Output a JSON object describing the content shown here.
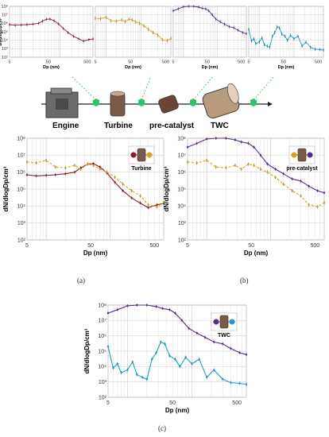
{
  "figure": {
    "captions": {
      "a": "(a)",
      "b": "(b)",
      "c": "(c)"
    },
    "schematic": {
      "labels": {
        "engine": "Engine",
        "turbine": "Turbine",
        "precat": "pre-catalyst",
        "twc": "TWC"
      }
    }
  },
  "chart_data": [
    {
      "id": "top-1",
      "type": "line",
      "title": "",
      "xlabel": "Dp (nm)",
      "ylabel": "dN/dlogDp/cm³",
      "xscale": "log",
      "yscale": "log",
      "xlim": [
        5,
        700
      ],
      "ylim": [
        100,
        100000000
      ],
      "xticks": [
        "5",
        "50",
        "500"
      ],
      "yticks": [
        "10²",
        "10³",
        "10⁴",
        "10⁵",
        "10⁶",
        "10⁷",
        "10⁸"
      ],
      "series": [
        {
          "color": "#8b1c2c",
          "x": [
            5,
            7,
            10,
            14,
            20,
            28,
            35,
            45,
            55,
            70,
            90,
            120,
            160,
            220,
            300,
            400,
            550,
            700
          ],
          "y": [
            700000,
            600000,
            650000,
            700000,
            800000,
            1000000,
            1800000,
            3000000,
            3200000,
            2000000,
            900000,
            250000,
            80000,
            30000,
            15000,
            8000,
            12000,
            14000
          ]
        }
      ]
    },
    {
      "id": "top-2",
      "type": "line",
      "title": "",
      "xlabel": "Dp (nm)",
      "ylabel": "",
      "xscale": "log",
      "yscale": "log",
      "xlim": [
        5,
        700
      ],
      "ylim": [
        100,
        100000000
      ],
      "xticks": [
        "5",
        "50",
        "500"
      ],
      "yticks": [],
      "series": [
        {
          "color": "#d9a21c",
          "x": [
            5,
            7,
            10,
            14,
            20,
            28,
            35,
            45,
            55,
            70,
            90,
            120,
            160,
            220,
            300,
            400,
            550,
            700
          ],
          "y": [
            4000000,
            3500000,
            5000000,
            2000000,
            1800000,
            2500000,
            1500000,
            3000000,
            2500000,
            1500000,
            1000000,
            500000,
            200000,
            80000,
            40000,
            12000,
            9000,
            16000
          ]
        }
      ]
    },
    {
      "id": "top-3",
      "type": "line",
      "title": "",
      "xlabel": "Dp (nm)",
      "ylabel": "",
      "xscale": "log",
      "yscale": "log",
      "xlim": [
        5,
        700
      ],
      "ylim": [
        100,
        100000000
      ],
      "xticks": [
        "5",
        "50",
        "500"
      ],
      "yticks": [],
      "series": [
        {
          "color": "#5b2c8a",
          "x": [
            5,
            7,
            10,
            14,
            20,
            28,
            35,
            45,
            55,
            70,
            90,
            120,
            160,
            220,
            300,
            400,
            550,
            700
          ],
          "y": [
            30000000,
            50000000,
            90000000,
            120000000,
            110000000,
            80000000,
            60000000,
            50000000,
            30000000,
            10000000,
            3000000,
            1500000,
            800000,
            400000,
            300000,
            150000,
            80000,
            60000
          ]
        }
      ]
    },
    {
      "id": "top-4",
      "type": "line",
      "title": "",
      "xlabel": "Dp (nm)",
      "ylabel": "",
      "xscale": "log",
      "yscale": "log",
      "xlim": [
        5,
        700
      ],
      "ylim": [
        100,
        100000000
      ],
      "xticks": [
        "5",
        "50",
        "500"
      ],
      "yticks": [],
      "series": [
        {
          "color": "#1aa0c4",
          "x": [
            5,
            6,
            7,
            8,
            10,
            12,
            14,
            17,
            20,
            24,
            28,
            33,
            38,
            45,
            55,
            65,
            80,
            100,
            130,
            170,
            220,
            300,
            400,
            550,
            700
          ],
          "y": [
            200000,
            8000,
            15000,
            4000,
            6000,
            20000,
            3000,
            2000,
            1500,
            30000,
            80000,
            400000,
            300000,
            50000,
            30000,
            10000,
            40000,
            15000,
            30000,
            2000,
            6000,
            1500,
            900,
            800,
            700
          ]
        }
      ]
    },
    {
      "id": "a",
      "type": "line",
      "title": "",
      "xlabel": "Dp (nm)",
      "ylabel": "dN/dlogDp/cm³",
      "xscale": "log",
      "yscale": "log",
      "xlim": [
        5,
        700
      ],
      "ylim": [
        100,
        100000000
      ],
      "xticks": [
        "5",
        "50",
        "500"
      ],
      "yticks": [
        "10²",
        "10³",
        "10⁴",
        "10⁵",
        "10⁶",
        "10⁷",
        "10⁸"
      ],
      "inset_label": "Turbine",
      "series": [
        {
          "color": "#8b1c2c",
          "dashed": false,
          "x": [
            5,
            7,
            10,
            14,
            20,
            28,
            35,
            45,
            55,
            70,
            90,
            120,
            160,
            220,
            300,
            400,
            550,
            700
          ],
          "y": [
            700000,
            600000,
            650000,
            700000,
            800000,
            1000000,
            1800000,
            3000000,
            3200000,
            2000000,
            900000,
            250000,
            80000,
            30000,
            15000,
            8000,
            12000,
            14000
          ]
        },
        {
          "color": "#d9a21c",
          "dashed": true,
          "x": [
            5,
            7,
            10,
            14,
            20,
            28,
            35,
            45,
            55,
            70,
            90,
            120,
            160,
            220,
            300,
            400,
            550,
            700
          ],
          "y": [
            4000000,
            3500000,
            5000000,
            2000000,
            1800000,
            2500000,
            1500000,
            3000000,
            2500000,
            1500000,
            1000000,
            500000,
            200000,
            80000,
            40000,
            12000,
            9000,
            16000
          ]
        }
      ]
    },
    {
      "id": "b",
      "type": "line",
      "title": "",
      "xlabel": "Dp (nm)",
      "ylabel": "dN/dlogDp/cm³",
      "xscale": "log",
      "yscale": "log",
      "xlim": [
        5,
        700
      ],
      "ylim": [
        100,
        100000000
      ],
      "xticks": [
        "5",
        "50",
        "500"
      ],
      "yticks": [
        "10²",
        "10³",
        "10⁴",
        "10⁵",
        "10⁶",
        "10⁷",
        "10⁸"
      ],
      "inset_label": "pre-catalyst",
      "series": [
        {
          "color": "#d9a21c",
          "dashed": true,
          "x": [
            5,
            7,
            10,
            14,
            20,
            28,
            35,
            45,
            55,
            70,
            90,
            120,
            160,
            220,
            300,
            400,
            550,
            700
          ],
          "y": [
            4000000,
            3500000,
            5000000,
            2000000,
            1800000,
            2500000,
            1500000,
            3000000,
            2500000,
            1500000,
            1000000,
            500000,
            200000,
            80000,
            40000,
            12000,
            9000,
            16000
          ]
        },
        {
          "color": "#5b2c8a",
          "dashed": false,
          "x": [
            5,
            7,
            10,
            14,
            20,
            28,
            35,
            45,
            55,
            70,
            90,
            120,
            160,
            220,
            300,
            400,
            550,
            700
          ],
          "y": [
            30000000,
            50000000,
            90000000,
            120000000,
            110000000,
            80000000,
            60000000,
            50000000,
            30000000,
            10000000,
            3000000,
            1500000,
            800000,
            400000,
            300000,
            150000,
            80000,
            60000
          ]
        }
      ]
    },
    {
      "id": "c",
      "type": "line",
      "title": "",
      "xlabel": "Dp (nm)",
      "ylabel": "dN/dlogDp/cm³",
      "xscale": "log",
      "yscale": "log",
      "xlim": [
        5,
        700
      ],
      "ylim": [
        100,
        100000000
      ],
      "xticks": [
        "5",
        "50",
        "500"
      ],
      "yticks": [
        "10²",
        "10³",
        "10⁴",
        "10⁵",
        "10⁶",
        "10⁷",
        "10⁸"
      ],
      "inset_label": "TWC",
      "series": [
        {
          "color": "#5b2c8a",
          "dashed": false,
          "x": [
            5,
            7,
            10,
            14,
            20,
            28,
            35,
            45,
            55,
            70,
            90,
            120,
            160,
            220,
            300,
            400,
            550,
            700
          ],
          "y": [
            30000000,
            50000000,
            90000000,
            120000000,
            110000000,
            80000000,
            60000000,
            50000000,
            30000000,
            10000000,
            3000000,
            1500000,
            800000,
            400000,
            300000,
            150000,
            80000,
            60000
          ]
        },
        {
          "color": "#1aa0c4",
          "dashed": false,
          "x": [
            5,
            6,
            7,
            8,
            10,
            12,
            14,
            17,
            20,
            24,
            28,
            33,
            38,
            45,
            55,
            65,
            80,
            100,
            130,
            170,
            220,
            300,
            400,
            550,
            700
          ],
          "y": [
            200000,
            8000,
            15000,
            4000,
            6000,
            20000,
            3000,
            2000,
            1500,
            30000,
            80000,
            400000,
            300000,
            50000,
            30000,
            10000,
            40000,
            15000,
            30000,
            2000,
            6000,
            1500,
            900,
            800,
            700
          ]
        }
      ]
    }
  ]
}
